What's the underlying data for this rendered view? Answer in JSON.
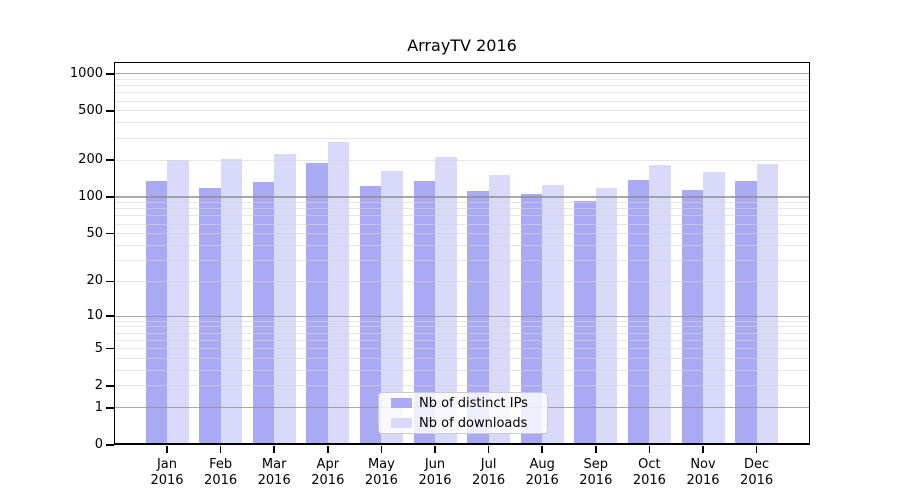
{
  "title": "ArrayTV 2016",
  "legend": {
    "items": [
      {
        "label": "Nb of distinct IPs",
        "color": "#aaaaf4"
      },
      {
        "label": "Nb of downloads",
        "color": "#d9d9f9"
      }
    ]
  },
  "chart_data": {
    "type": "bar",
    "title": "ArrayTV 2016",
    "categories": [
      "Jan",
      "Feb",
      "Mar",
      "Apr",
      "May",
      "Jun",
      "Jul",
      "Aug",
      "Sep",
      "Oct",
      "Nov",
      "Dec"
    ],
    "x_tick_second_line": "2016",
    "series": [
      {
        "name": "Nb of distinct IPs",
        "color": "#aaaaf4",
        "values": [
          135,
          118,
          132,
          190,
          124,
          135,
          111,
          106,
          93,
          138,
          114,
          135
        ]
      },
      {
        "name": "Nb of downloads",
        "color": "#d9d9f9",
        "values": [
          200,
          205,
          225,
          280,
          164,
          210,
          152,
          125,
          119,
          182,
          161,
          185
        ]
      }
    ],
    "y_axis": {
      "scale": "symlog",
      "tick_values": [
        1000,
        500,
        200,
        100,
        50,
        20,
        10,
        5,
        2,
        1,
        0
      ],
      "tick_labels": [
        "1000",
        "500",
        "200",
        "100",
        "50",
        "20",
        "10",
        "5",
        "2",
        "1",
        "0"
      ],
      "major_gridlines": [
        1,
        10,
        100,
        1000
      ],
      "minor_gridlines_per_decade": [
        2,
        3,
        4,
        5,
        6,
        7,
        8,
        9
      ],
      "ylim": [
        0,
        1245
      ]
    },
    "xlabel": "",
    "ylabel": "",
    "grid": "on",
    "legend_position": "lower-center",
    "style": {
      "major_grid_color": "#a9a9a9",
      "minor_grid_color": "#e8e8e8",
      "axis_color": "#000000",
      "background": "#ffffff"
    }
  }
}
